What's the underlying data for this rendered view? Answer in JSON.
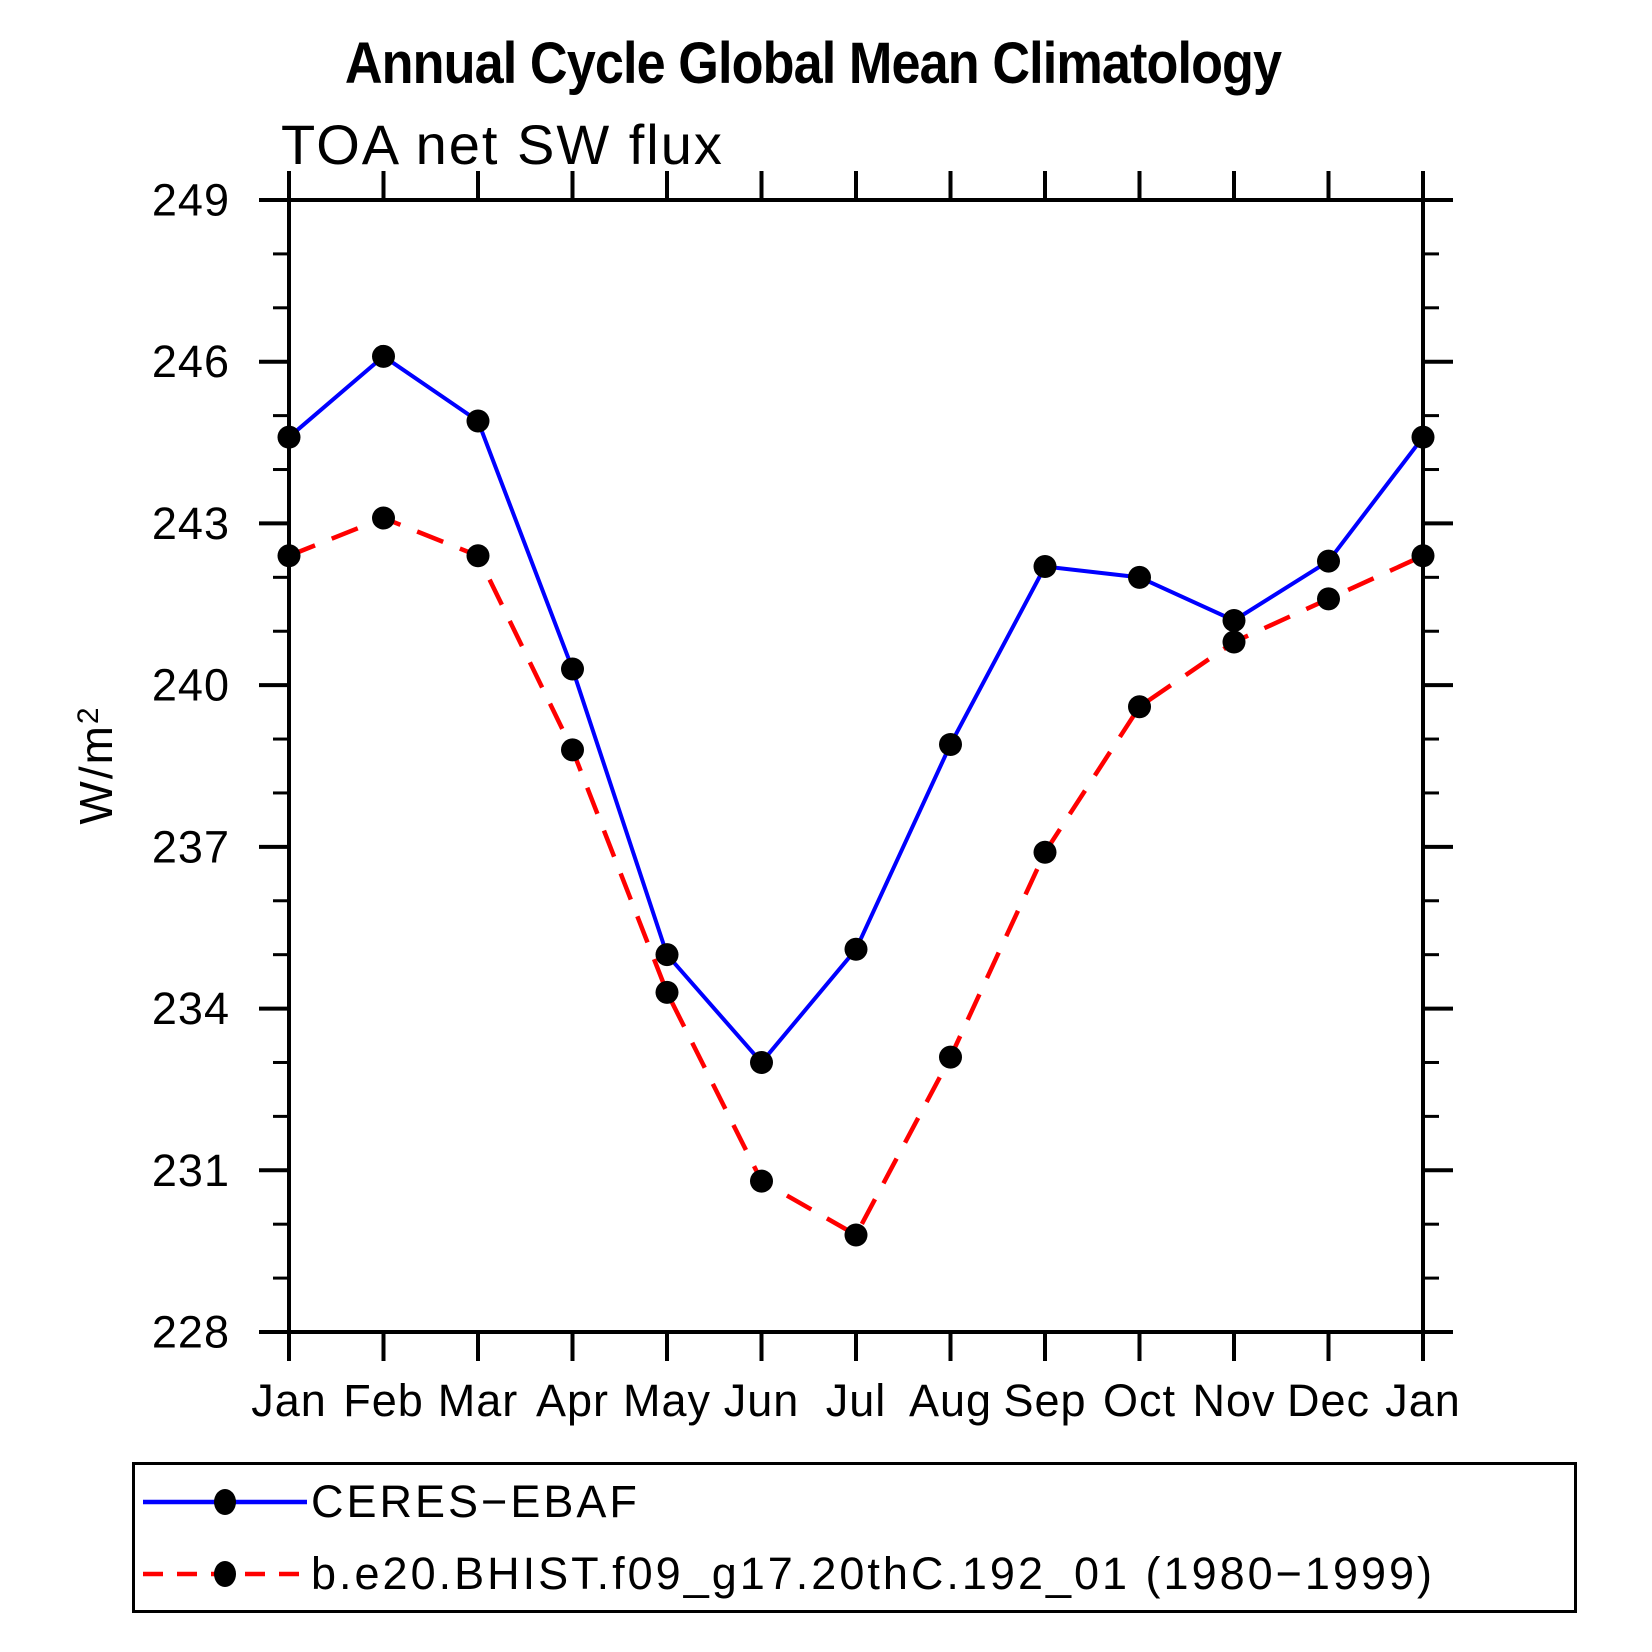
{
  "title": "Annual Cycle Global Mean Climatology",
  "subtitle": "TOA net SW flux",
  "y_axis": {
    "label_main": "W/m",
    "label_sup": "2"
  },
  "colors": {
    "observation_line": "#0000ff",
    "model_line": "#ff0000",
    "marker": "#000000",
    "axis": "#000000"
  },
  "chart_data": {
    "type": "line",
    "title": "Annual Cycle Global Mean Climatology",
    "subtitle": "TOA net SW flux",
    "xlabel": "",
    "ylabel": "W/m²",
    "categories": [
      "Jan",
      "Feb",
      "Mar",
      "Apr",
      "May",
      "Jun",
      "Jul",
      "Aug",
      "Sep",
      "Oct",
      "Nov",
      "Dec",
      "Jan"
    ],
    "ylim": [
      228,
      249
    ],
    "yticks_major": [
      228,
      231,
      234,
      237,
      240,
      243,
      246,
      249
    ],
    "ytick_minor_interval": 1,
    "grid": false,
    "legend_position": "bottom-left-box",
    "series": [
      {
        "name": "CERES−EBAF",
        "color": "#0000ff",
        "line_style": "solid",
        "marker": "filled-circle",
        "marker_color": "#000000",
        "values": [
          244.6,
          246.1,
          244.9,
          240.3,
          235.0,
          233.0,
          235.1,
          238.9,
          242.2,
          242.0,
          241.2,
          242.3,
          244.6
        ]
      },
      {
        "name": "b.e20.BHIST.f09_g17.20thC.192_01 (1980−1999)",
        "color": "#ff0000",
        "line_style": "dashed",
        "marker": "filled-circle",
        "marker_color": "#000000",
        "values": [
          242.4,
          243.1,
          242.4,
          238.8,
          234.3,
          230.8,
          229.8,
          233.1,
          236.9,
          239.6,
          240.8,
          241.6,
          242.4
        ]
      }
    ]
  }
}
